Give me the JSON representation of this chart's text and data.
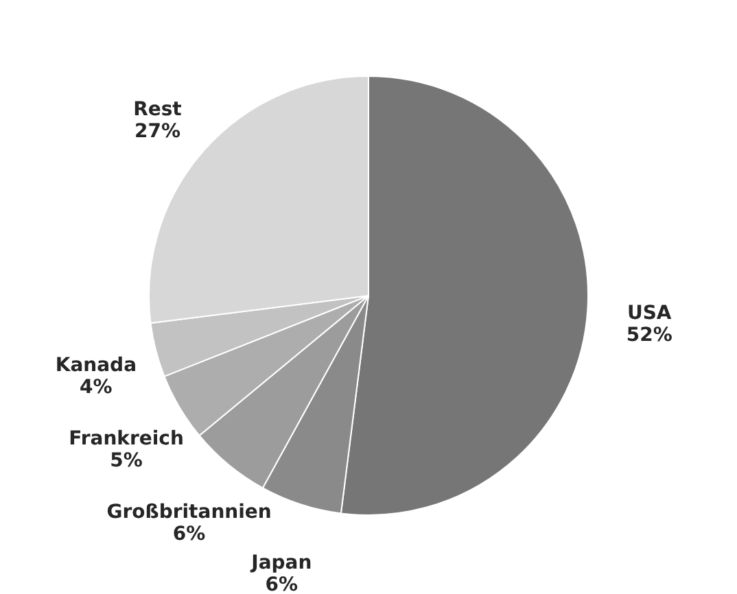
{
  "chart_data": {
    "type": "pie",
    "categories": [
      "USA",
      "Japan",
      "Großbritannien",
      "Frankreich",
      "Kanada",
      "Rest"
    ],
    "values": [
      52,
      6,
      6,
      5,
      4,
      27
    ],
    "value_labels": [
      "52%",
      "6%",
      "6%",
      "5%",
      "4%",
      "27%"
    ],
    "colors": [
      "#767676",
      "#8a8a8a",
      "#9c9c9c",
      "#adadad",
      "#c2c2c2",
      "#d7d7d7"
    ],
    "legend": false
  }
}
